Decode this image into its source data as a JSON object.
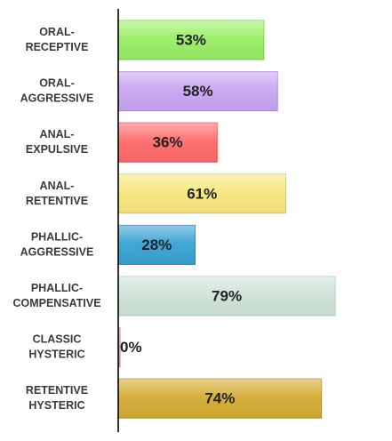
{
  "chart_data": {
    "type": "bar",
    "orientation": "horizontal",
    "categories": [
      [
        "ORAL-",
        "RECEPTIVE"
      ],
      [
        "ORAL-",
        "AGGRESSIVE"
      ],
      [
        "ANAL-",
        "EXPULSIVE"
      ],
      [
        "ANAL-",
        "RETENTIVE"
      ],
      [
        "PHALLIC-",
        "AGGRESSIVE"
      ],
      [
        "PHALLIC-",
        "COMPENSATIVE"
      ],
      [
        "CLASSIC",
        "HYSTERIC"
      ],
      [
        "RETENTIVE",
        "HYSTERIC"
      ]
    ],
    "values": [
      53,
      58,
      36,
      61,
      28,
      79,
      0,
      74
    ],
    "value_labels": [
      "53%",
      "58%",
      "36%",
      "61%",
      "28%",
      "79%",
      "0%",
      "74%"
    ],
    "colors": [
      "#99ee66",
      "#c8a6f2",
      "#ff6b6b",
      "#f7e77e",
      "#3aa3d3",
      "#cfe3d8",
      "#e8a0c0",
      "#d4ad35"
    ],
    "border_colors": [
      "#7acc48",
      "#a888d6",
      "#e04848",
      "#d8c55a",
      "#2a85b2",
      "#b6cbbf",
      "#c0809e",
      "#b08c20"
    ],
    "xlim": [
      0,
      100
    ],
    "title": "",
    "xlabel": "",
    "ylabel": "",
    "grid": false,
    "legend": "none"
  }
}
